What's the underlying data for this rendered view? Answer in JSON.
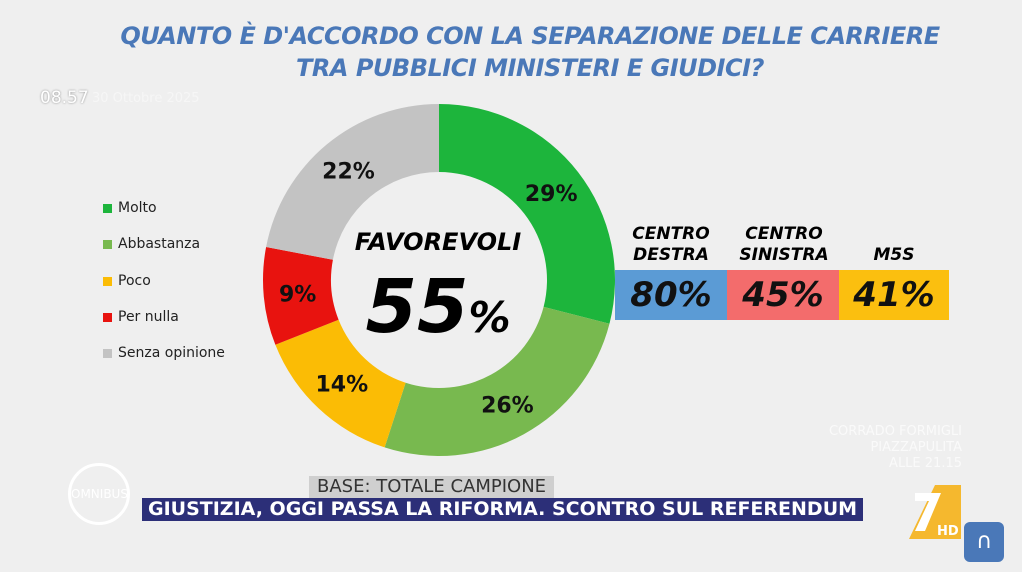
{
  "overlay": {
    "clock": "08.57",
    "date": "30 Ottobre 2025",
    "program_logo": "OMNIBUS",
    "promo": [
      "CORRADO FORMIGLI",
      "PIAZZAPULITA",
      "ALLE 21.15"
    ],
    "channel_logo": "LA7 HD"
  },
  "chart_data": {
    "type": "pie",
    "donut": true,
    "title": "QUANTO È D'ACCORDO CON LA SEPARAZIONE DELLE CARRIERE TRA PUBBLICI MINISTERI E GIUDICI?",
    "title_lines": [
      "QUANTO È D'ACCORDO CON LA SEPARAZIONE DELLE CARRIERE",
      "TRA PUBBLICI MINISTERI E GIUDICI?"
    ],
    "legend_position": "left",
    "slices": [
      {
        "label": "Molto",
        "value": 29,
        "text": "29%",
        "color": "#1db53c"
      },
      {
        "label": "Abbastanza",
        "value": 26,
        "text": "26%",
        "color": "#78b94f"
      },
      {
        "label": "Poco",
        "value": 14,
        "text": "14%",
        "color": "#fbbc05"
      },
      {
        "label": "Per nulla",
        "value": 9,
        "text": "9%",
        "color": "#e8130f"
      },
      {
        "label": "Senza opinione",
        "value": 22,
        "text": "22%",
        "color": "#c3c3c3"
      }
    ],
    "center": {
      "label": "FAVOREVOLI",
      "value": "55",
      "unit": "%"
    },
    "groups": [
      {
        "label1": "CENTRO",
        "label2": "DESTRA",
        "value": "80%",
        "color": "#5b9bd5"
      },
      {
        "label1": "CENTRO",
        "label2": "SINISTRA",
        "value": "45%",
        "color": "#f36c6c"
      },
      {
        "label1": "",
        "label2": "M5S",
        "value": "41%",
        "color": "#fbbf0f"
      }
    ]
  },
  "footer": {
    "base": "BASE: TOTALE CAMPIONE",
    "ticker": "GIUSTIZIA, OGGI PASSA LA RIFORMA. SCONTRO SUL REFERENDUM"
  }
}
